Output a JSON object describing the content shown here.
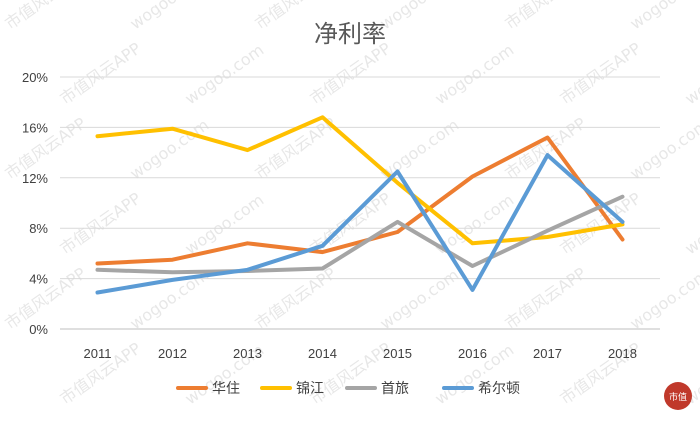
{
  "chart_data": {
    "type": "line",
    "title": "净利率",
    "xlabel": "",
    "ylabel": "",
    "categories": [
      "2011",
      "2012",
      "2013",
      "2014",
      "2015",
      "2016",
      "2017",
      "2018"
    ],
    "y_ticks": [
      "0%",
      "4%",
      "8%",
      "12%",
      "16%",
      "20%"
    ],
    "ylim": [
      0,
      20
    ],
    "grid": true,
    "legend_position": "bottom",
    "series": [
      {
        "name": "华住",
        "color": "#ED7D31",
        "values": [
          5.2,
          5.5,
          6.8,
          6.1,
          7.7,
          12.1,
          15.2,
          7.1
        ]
      },
      {
        "name": "锦江",
        "color": "#FFC000",
        "values": [
          15.3,
          15.9,
          14.2,
          16.8,
          11.6,
          6.8,
          7.3,
          8.3
        ]
      },
      {
        "name": "首旅",
        "color": "#A5A5A5",
        "values": [
          4.7,
          4.5,
          4.6,
          4.8,
          8.5,
          5.0,
          7.8,
          10.5
        ]
      },
      {
        "name": "希尔顿",
        "color": "#5B9BD5",
        "values": [
          2.9,
          3.9,
          4.7,
          6.6,
          12.5,
          3.1,
          13.8,
          8.5
        ]
      }
    ]
  },
  "watermark": {
    "text": "市值风云APP",
    "url_text": "wogoo.com"
  },
  "logo": {
    "text": "市值"
  }
}
